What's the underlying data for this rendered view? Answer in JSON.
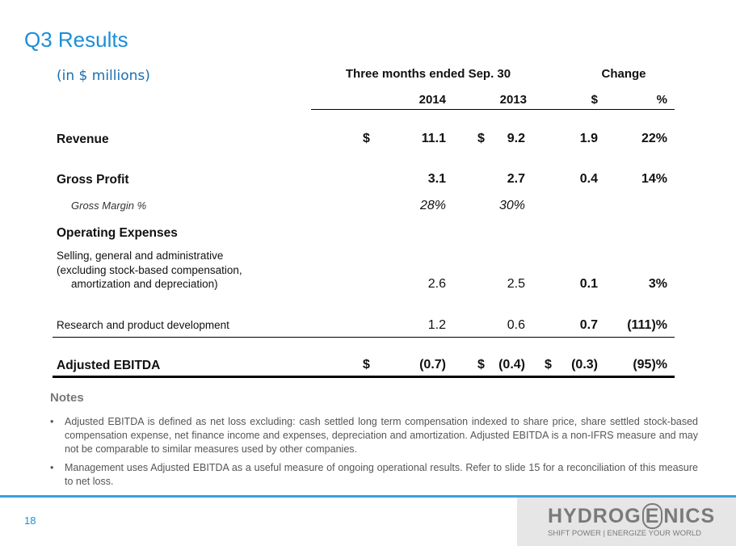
{
  "title": "Q3 Results",
  "subtitle": "(in $ millions)",
  "table": {
    "header": {
      "period": "Three months ended Sep. 30",
      "change": "Change",
      "y2014": "2014",
      "y2013": "2013",
      "dollar": "$",
      "percent": "%"
    },
    "rows": [
      {
        "label": [
          "Revenue"
        ],
        "style": "bold",
        "cells": {
          "s14": "$",
          "v14": "11.1",
          "s13": "$",
          "v13": "9.2",
          "ch": "1.9",
          "pct": "22%"
        }
      },
      {
        "label": [
          "Gross Profit"
        ],
        "style": "bold",
        "cells": {
          "v14": "3.1",
          "v13": "2.7",
          "ch": "0.4",
          "pct": "14%"
        }
      },
      {
        "label": [
          "Gross Margin %"
        ],
        "style": "italic",
        "cells": {
          "v14": "28%",
          "v13": "30%"
        }
      },
      {
        "label": [
          "Operating Expenses"
        ],
        "style": "bold",
        "cells": {}
      },
      {
        "label": [
          "Selling, general and administrative",
          "(excluding stock-based compensation,",
          "amortization and depreciation)"
        ],
        "style": "normal",
        "cells": {
          "v14": "2.6",
          "v13": "2.5",
          "ch": "0.1",
          "pct": "3%"
        }
      },
      {
        "label": [
          "Research and product development"
        ],
        "style": "normal",
        "cells": {
          "v14": "1.2",
          "v13": "0.6",
          "ch": "0.7",
          "pct": "(111)%"
        }
      },
      {
        "label": [
          "Adjusted EBITDA"
        ],
        "style": "bold",
        "cells": {
          "s14": "$",
          "v14": "(0.7)",
          "s13": "$",
          "v13": "(0.4)",
          "sch": "$",
          "ch": "(0.3)",
          "pct": "(95)%"
        }
      }
    ]
  },
  "notes": {
    "heading": "Notes",
    "bullets": [
      "Adjusted EBITDA is defined as net loss excluding: cash settled long term compensation indexed to share price, share settled stock-based compensation expense, net finance income and expenses, depreciation and amortization. Adjusted EBITDA is a non-IFRS measure and may not be comparable to similar measures used by other companies.",
      "Management uses Adjusted EBITDA as a useful measure of ongoing operational results. Refer to slide 15 for a reconciliation of this measure to net loss."
    ]
  },
  "footer": {
    "page": "18",
    "logo": [
      "HYDROG",
      "E",
      "NICS"
    ],
    "tagline": "SHIFT POWER | ENERGIZE YOUR WORLD"
  }
}
